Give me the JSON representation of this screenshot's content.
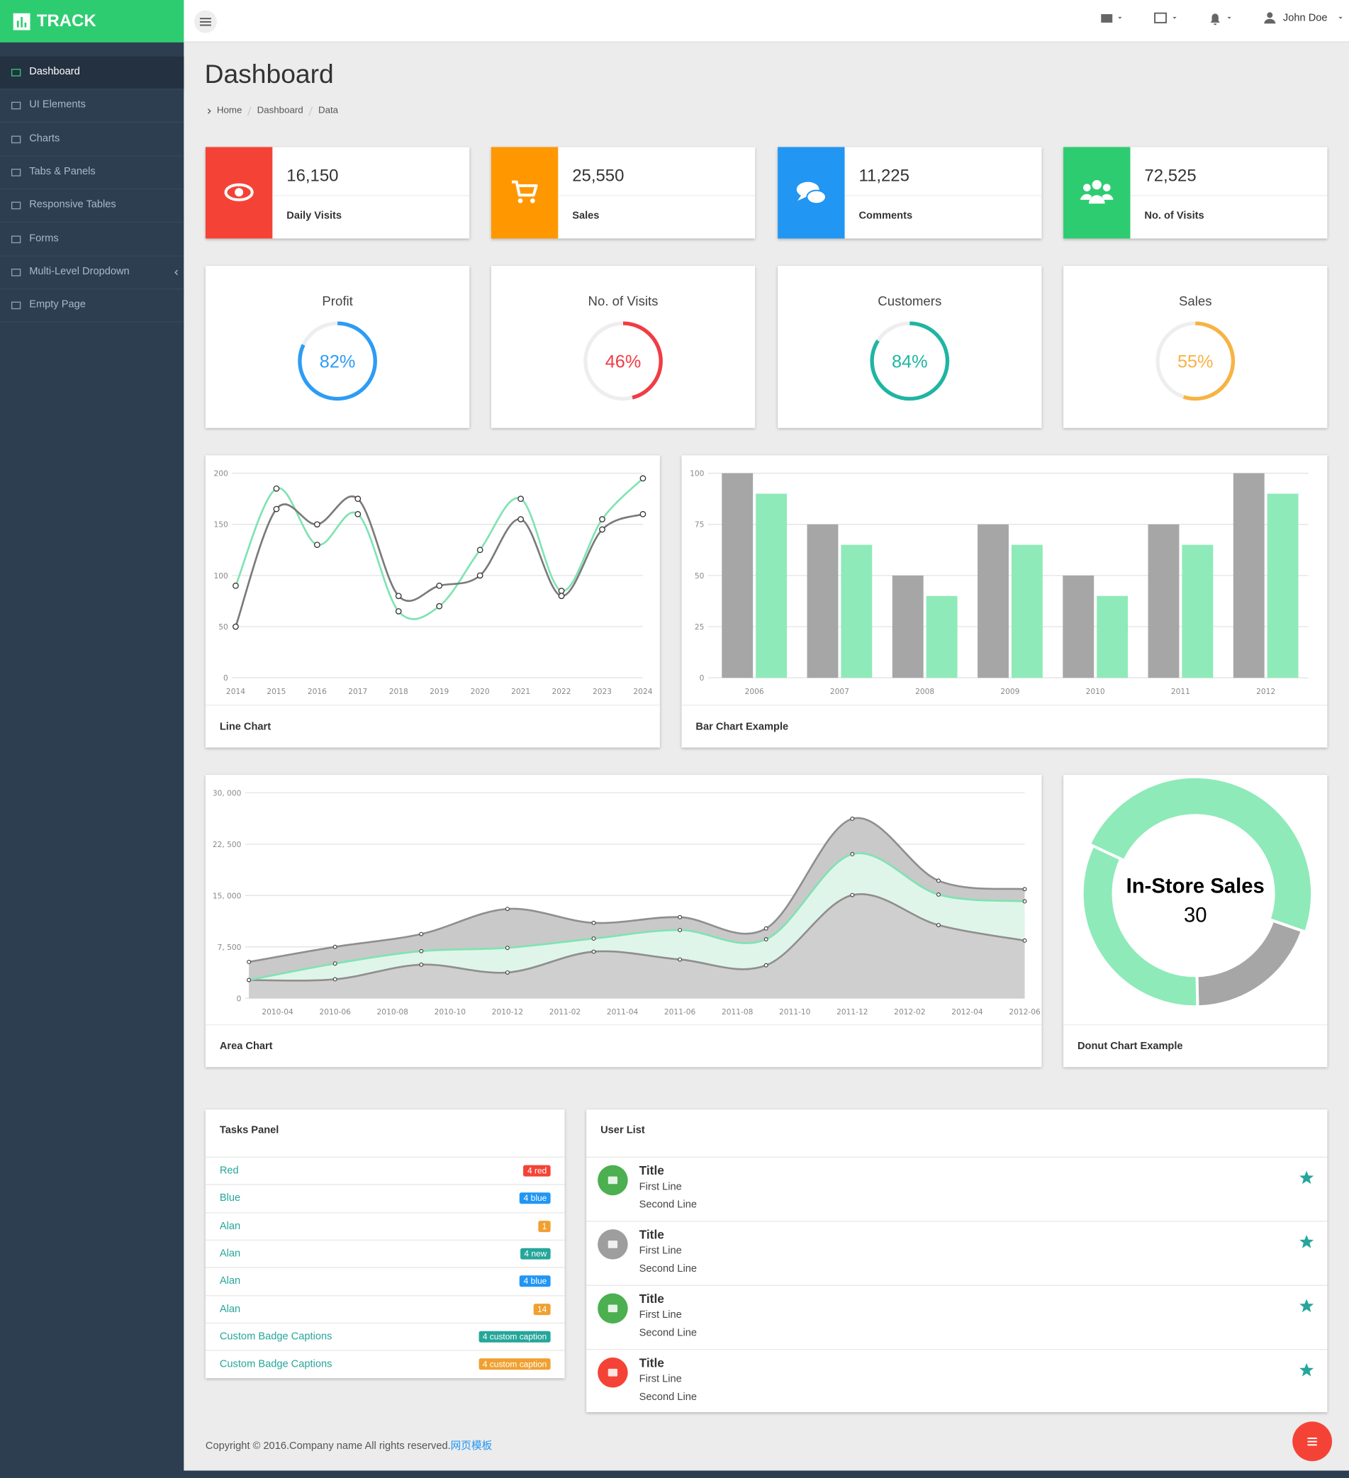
{
  "header": {
    "brand": "TRACK",
    "user": "John Doe"
  },
  "menu": [
    "Dashboard",
    "UI Elements",
    "Charts",
    "Tabs & Panels",
    "Responsive Tables",
    "Forms",
    "Multi-Level Dropdown",
    "Empty Page"
  ],
  "page": {
    "title": "Dashboard",
    "breadcrumb": [
      "Home",
      "Dashboard",
      "Data"
    ]
  },
  "stats": [
    {
      "value": "16,150",
      "label": "Daily Visits",
      "color": "#f44336"
    },
    {
      "value": "25,550",
      "label": "Sales",
      "color": "#ff9800"
    },
    {
      "value": "11,225",
      "label": "Comments",
      "color": "#2196f3"
    },
    {
      "value": "72,525",
      "label": "No. of Visits",
      "color": "#2ecc71"
    }
  ],
  "chart_data": [
    {
      "type": "gauge",
      "title": "Profit",
      "values": [
        82
      ],
      "value_labels": [
        "82%"
      ],
      "ylim": [
        0,
        100
      ],
      "color": "#2d9cf5"
    },
    {
      "type": "gauge",
      "title": "No. of Visits",
      "values": [
        46
      ],
      "value_labels": [
        "46%"
      ],
      "ylim": [
        0,
        100
      ],
      "color": "#f13c44"
    },
    {
      "type": "gauge",
      "title": "Customers",
      "values": [
        84
      ],
      "value_labels": [
        "84%"
      ],
      "ylim": [
        0,
        100
      ],
      "color": "#1fb5a3"
    },
    {
      "type": "gauge",
      "title": "Sales",
      "values": [
        55
      ],
      "value_labels": [
        "55%"
      ],
      "ylim": [
        0,
        100
      ],
      "color": "#f7b343"
    },
    {
      "type": "line",
      "title": "Line Chart",
      "x": [
        2014,
        2015,
        2016,
        2017,
        2018,
        2019,
        2020,
        2021,
        2022,
        2023,
        2024
      ],
      "xlim": [
        2014,
        2024
      ],
      "xticks": [
        2014,
        2015,
        2016,
        2017,
        2018,
        2019,
        2020,
        2021,
        2022,
        2023,
        2024
      ],
      "ylim": [
        0,
        200
      ],
      "yticks": [
        0,
        50,
        100,
        150,
        200
      ],
      "grid": true,
      "series": [
        {
          "color": "#7fe3b2",
          "values": [
            90,
            185,
            130,
            160,
            65,
            70,
            125,
            175,
            85,
            155,
            195
          ]
        },
        {
          "color": "#7a7a7a",
          "values": [
            50,
            165,
            150,
            175,
            80,
            90,
            100,
            155,
            80,
            145,
            160
          ]
        }
      ]
    },
    {
      "type": "bar",
      "title": "Bar Chart Example",
      "categories": [
        "2006",
        "2007",
        "2008",
        "2009",
        "2010",
        "2011",
        "2012"
      ],
      "ylim": [
        0,
        100
      ],
      "yticks": [
        0,
        25,
        50,
        75,
        100
      ],
      "grid": true,
      "series": [
        {
          "color": "#a6a6a6",
          "values": [
            100,
            75,
            50,
            75,
            50,
            75,
            100
          ]
        },
        {
          "color": "#8eeab8",
          "values": [
            90,
            65,
            40,
            65,
            40,
            65,
            90
          ]
        }
      ]
    },
    {
      "type": "area",
      "title": "Area Chart",
      "x": [
        "2010-03",
        "2010-06",
        "2010-09",
        "2010-12",
        "2011-03",
        "2011-06",
        "2011-09",
        "2011-12",
        "2012-03",
        "2012-06"
      ],
      "xlim": [
        "2010-03",
        "2012-06"
      ],
      "xticks": [
        "2010-04",
        "2010-06",
        "2010-08",
        "2010-10",
        "2010-12",
        "2011-02",
        "2011-04",
        "2011-06",
        "2011-08",
        "2011-10",
        "2011-12",
        "2012-02",
        "2012-04",
        "2012-06"
      ],
      "ylim": [
        0,
        30000
      ],
      "yticks": [
        0,
        {
          "value": 7500,
          "label": "7, 500"
        },
        {
          "value": 15000,
          "label": "15, 000"
        },
        {
          "value": 22500,
          "label": "22, 500"
        },
        {
          "value": 30000,
          "label": "30, 000"
        }
      ],
      "grid": true,
      "stacked": true,
      "series": [
        {
          "color": "#8f8f8f",
          "fill": "#cfcfcf",
          "values": [
            2666,
            2778,
            4912,
            3767,
            6810,
            5670,
            4820,
            15073,
            10687,
            8432
          ]
        },
        {
          "color": "#7fe3b2",
          "fill": "#e0f5ea",
          "values": [
            0,
            2294,
            1969,
            3597,
            1914,
            4293,
            3795,
            5967,
            4460,
            5713
          ]
        },
        {
          "color": "#8f8f8f",
          "fill": "#c9c9c9",
          "values": [
            2647,
            2441,
            2501,
            5689,
            2293,
            1881,
            1588,
            5175,
            2028,
            1791
          ]
        }
      ]
    },
    {
      "type": "donut",
      "title": "Donut Chart Example",
      "categories": [
        "In-Store Sales",
        null,
        null
      ],
      "values": [
        30,
        12,
        20
      ],
      "colors": [
        "#8eeab8",
        "#a6a6a6",
        "#8eeab8"
      ],
      "selected": 0
    }
  ],
  "tasks": {
    "title": "Tasks Panel",
    "items": [
      {
        "label": "Red",
        "badge": "4 red",
        "color": "#f44336"
      },
      {
        "label": "Blue",
        "badge": "4 blue",
        "color": "#2196f3"
      },
      {
        "label": "Alan",
        "badge": "1",
        "color": "#f0a030"
      },
      {
        "label": "Alan",
        "badge": "4 new",
        "color": "#26a69a"
      },
      {
        "label": "Alan",
        "badge": "4 blue",
        "color": "#2196f3"
      },
      {
        "label": "Alan",
        "badge": "14",
        "color": "#f0a030"
      },
      {
        "label": "Custom Badge Captions",
        "badge": "4 custom caption",
        "color": "#26a69a"
      },
      {
        "label": "Custom Badge Captions",
        "badge": "4 custom caption",
        "color": "#f0a030"
      }
    ]
  },
  "users": {
    "title": "User List",
    "items": [
      {
        "title": "Title",
        "line1": "First Line",
        "line2": "Second Line",
        "color": "#4caf50"
      },
      {
        "title": "Title",
        "line1": "First Line",
        "line2": "Second Line",
        "color": "#9e9e9e"
      },
      {
        "title": "Title",
        "line1": "First Line",
        "line2": "Second Line",
        "color": "#4caf50"
      },
      {
        "title": "Title",
        "line1": "First Line",
        "line2": "Second Line",
        "color": "#f44336"
      }
    ]
  },
  "footer": {
    "text": "Copyright © 2016.Company name All rights reserved.",
    "link": "网页模板"
  }
}
